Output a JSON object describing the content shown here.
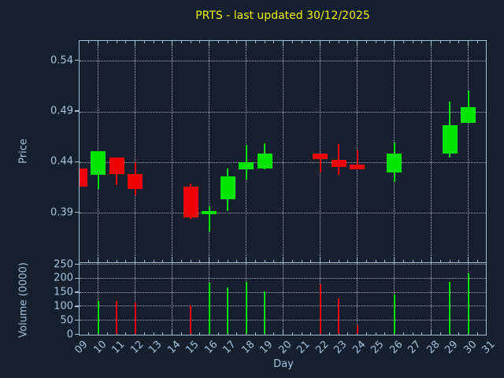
{
  "title": "PRTS - last updated 30/12/2025",
  "price_axis": {
    "label": "Price",
    "ticks": [
      "0.54",
      "0.49",
      "0.44",
      "0.39"
    ],
    "tick_values": [
      0.54,
      0.49,
      0.44,
      0.39
    ]
  },
  "volume_axis": {
    "label": "Volume (0000)",
    "ticks": [
      "250",
      "200",
      "150",
      "100",
      "50",
      "0"
    ],
    "tick_values": [
      250,
      200,
      150,
      100,
      50,
      0
    ]
  },
  "x_axis": {
    "label": "Day",
    "ticks": [
      "09",
      "10",
      "11",
      "12",
      "13",
      "14",
      "15",
      "16",
      "17",
      "18",
      "19",
      "20",
      "21",
      "22",
      "23",
      "24",
      "25",
      "26",
      "27",
      "28",
      "29",
      "30",
      "31"
    ],
    "tick_days": [
      9,
      10,
      11,
      12,
      13,
      14,
      15,
      16,
      17,
      18,
      19,
      20,
      21,
      22,
      23,
      24,
      25,
      26,
      27,
      28,
      29,
      30,
      31
    ]
  },
  "colors": {
    "background": "#151f2e",
    "axis": "#a3bfdb",
    "text": "#a6c2de",
    "title": "#f0f000",
    "grid": "#cbd5e0",
    "up": "#00e400",
    "down": "#ef0000"
  },
  "chart_data": {
    "type": "candlestick",
    "title": "PRTS - last updated 30/12/2025",
    "xlabel": "Day",
    "ylabel": "Price",
    "x_range": [
      9,
      31
    ],
    "price_ylim": [
      0.34,
      0.56
    ],
    "price_gridlines": [
      0.39,
      0.44,
      0.49,
      0.54
    ],
    "x_gridline_days": [
      10,
      12,
      14,
      16,
      18,
      20,
      22,
      24,
      26,
      28,
      30
    ],
    "volume_ylabel": "Volume (0000)",
    "volume_ylim": [
      0,
      250
    ],
    "volume_gridlines": [
      50,
      100,
      150,
      200,
      250
    ],
    "legend": "none",
    "grid": "dotted",
    "candles": [
      {
        "day": 9,
        "open": 0.434,
        "high": 0.434,
        "low": 0.416,
        "close": 0.416
      },
      {
        "day": 10,
        "open": 0.428,
        "high": 0.451,
        "low": 0.414,
        "close": 0.451
      },
      {
        "day": 11,
        "open": 0.445,
        "high": 0.445,
        "low": 0.418,
        "close": 0.429
      },
      {
        "day": 12,
        "open": 0.429,
        "high": 0.44,
        "low": 0.408,
        "close": 0.414
      },
      {
        "day": 15,
        "open": 0.416,
        "high": 0.419,
        "low": 0.384,
        "close": 0.386
      },
      {
        "day": 16,
        "open": 0.389,
        "high": 0.397,
        "low": 0.372,
        "close": 0.392
      },
      {
        "day": 17,
        "open": 0.404,
        "high": 0.434,
        "low": 0.392,
        "close": 0.426
      },
      {
        "day": 18,
        "open": 0.433,
        "high": 0.457,
        "low": 0.423,
        "close": 0.44
      },
      {
        "day": 19,
        "open": 0.434,
        "high": 0.459,
        "low": 0.433,
        "close": 0.449
      },
      {
        "day": 22,
        "open": 0.449,
        "high": 0.449,
        "low": 0.43,
        "close": 0.443
      },
      {
        "day": 23,
        "open": 0.443,
        "high": 0.458,
        "low": 0.428,
        "close": 0.436
      },
      {
        "day": 24,
        "open": 0.438,
        "high": 0.452,
        "low": 0.433,
        "close": 0.433
      },
      {
        "day": 26,
        "open": 0.43,
        "high": 0.46,
        "low": 0.421,
        "close": 0.449
      },
      {
        "day": 29,
        "open": 0.449,
        "high": 0.5,
        "low": 0.445,
        "close": 0.477
      },
      {
        "day": 30,
        "open": 0.479,
        "high": 0.511,
        "low": 0.479,
        "close": 0.495
      }
    ],
    "volumes": [
      {
        "day": 10,
        "value": 120
      },
      {
        "day": 11,
        "value": 120
      },
      {
        "day": 12,
        "value": 113
      },
      {
        "day": 15,
        "value": 103
      },
      {
        "day": 16,
        "value": 184
      },
      {
        "day": 17,
        "value": 168
      },
      {
        "day": 18,
        "value": 186
      },
      {
        "day": 19,
        "value": 153
      },
      {
        "day": 22,
        "value": 177
      },
      {
        "day": 23,
        "value": 129
      },
      {
        "day": 24,
        "value": 32
      },
      {
        "day": 26,
        "value": 143
      },
      {
        "day": 29,
        "value": 186
      },
      {
        "day": 30,
        "value": 218
      }
    ]
  }
}
